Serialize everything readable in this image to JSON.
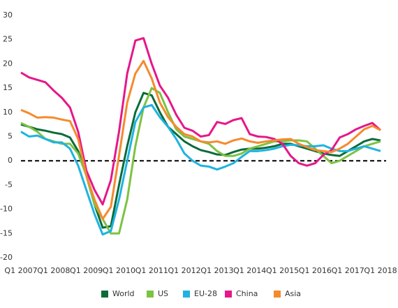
{
  "chart_data": {
    "type": "line",
    "categories": [
      "Q1 2007",
      null,
      null,
      null,
      "Q1 2008",
      null,
      null,
      null,
      "Q1 2009",
      null,
      null,
      null,
      "Q1 2010",
      null,
      null,
      null,
      "Q1 2011",
      null,
      null,
      null,
      "Q1 2012",
      null,
      null,
      null,
      "Q1 2013",
      null,
      null,
      null,
      "Q1 2014",
      null,
      null,
      null,
      "Q1 2015",
      null,
      null,
      null,
      "Q1 2016",
      null,
      null,
      null,
      "Q1 2017",
      null,
      null,
      null,
      "Q1 2018"
    ],
    "series": [
      {
        "name": "World",
        "color": "#0b6b3a",
        "values": [
          7.5,
          7,
          6.5,
          6.2,
          5.8,
          5.5,
          4.8,
          2,
          -3,
          -9,
          -13.8,
          -13.5,
          -5,
          3,
          10,
          14,
          13.5,
          10,
          7,
          5.5,
          4,
          3,
          2.2,
          1.8,
          1.3,
          1.2,
          1.8,
          2.3,
          2.5,
          2.5,
          2.7,
          3,
          3.5,
          3.5,
          3,
          2.5,
          2,
          1.5,
          1.2,
          1,
          2,
          3,
          4,
          4.5,
          4.2
        ]
      },
      {
        "name": "US",
        "color": "#7dc242",
        "values": [
          7.8,
          7,
          6,
          4.5,
          4,
          3.5,
          3.5,
          1.5,
          -3,
          -9,
          -12,
          -15,
          -15,
          -8,
          3,
          11,
          15,
          14,
          10,
          6.5,
          5,
          4.5,
          4,
          3.5,
          2,
          1,
          1,
          1.5,
          2.5,
          3,
          3.5,
          4,
          4,
          4.2,
          4.2,
          4,
          2.5,
          1,
          -0.5,
          0,
          1,
          2,
          3,
          3.5,
          4
        ]
      },
      {
        "name": "EU-28",
        "color": "#1fb3e0",
        "values": [
          6,
          5,
          5.2,
          4.5,
          3.8,
          3.8,
          2.5,
          -1,
          -6,
          -11,
          -15.2,
          -14.5,
          -8,
          0,
          8,
          11,
          11.5,
          9,
          7,
          4.5,
          1.5,
          0,
          -1,
          -1.2,
          -1.8,
          -1.2,
          -0.5,
          0.8,
          2,
          2,
          2.2,
          2.5,
          3,
          3.3,
          3.2,
          3,
          3,
          3.2,
          2.5,
          2,
          2,
          2.5,
          3,
          2.5,
          2
        ]
      },
      {
        "name": "China",
        "color": "#e5178b",
        "values": [
          18.2,
          17.2,
          16.7,
          16.2,
          14.5,
          13,
          11,
          6,
          -2,
          -6,
          -9,
          -4,
          6,
          18,
          24.8,
          25.3,
          20,
          15.5,
          13,
          9.5,
          6.8,
          6.2,
          5,
          5.3,
          8,
          7.6,
          8.4,
          8.8,
          5.5,
          5,
          4.9,
          4.5,
          3.5,
          1,
          -0.5,
          -1,
          -0.5,
          1.2,
          2.2,
          4.8,
          5.5,
          6.5,
          7.2,
          7.8,
          6.3
        ]
      },
      {
        "name": "Asia",
        "color": "#f58a2d",
        "values": [
          10.5,
          9.8,
          8.9,
          9,
          8.9,
          8.5,
          8.2,
          4.5,
          -3,
          -8,
          -12,
          -9.5,
          1,
          12,
          18,
          20.6,
          17,
          12,
          9,
          7,
          5.5,
          5,
          4,
          3.8,
          4,
          3.5,
          4.2,
          4.6,
          4,
          3.7,
          4,
          4.2,
          4.4,
          4.5,
          3.5,
          2.8,
          2.2,
          2,
          1.8,
          2.5,
          3.5,
          5,
          6.5,
          7.2,
          6.3
        ]
      }
    ],
    "ylim": [
      -20,
      30
    ],
    "yticks": [
      -20,
      -15,
      -10,
      -5,
      0,
      5,
      10,
      15,
      20,
      25,
      30
    ],
    "zero_line": true,
    "grid": false,
    "legend": "bottom"
  }
}
